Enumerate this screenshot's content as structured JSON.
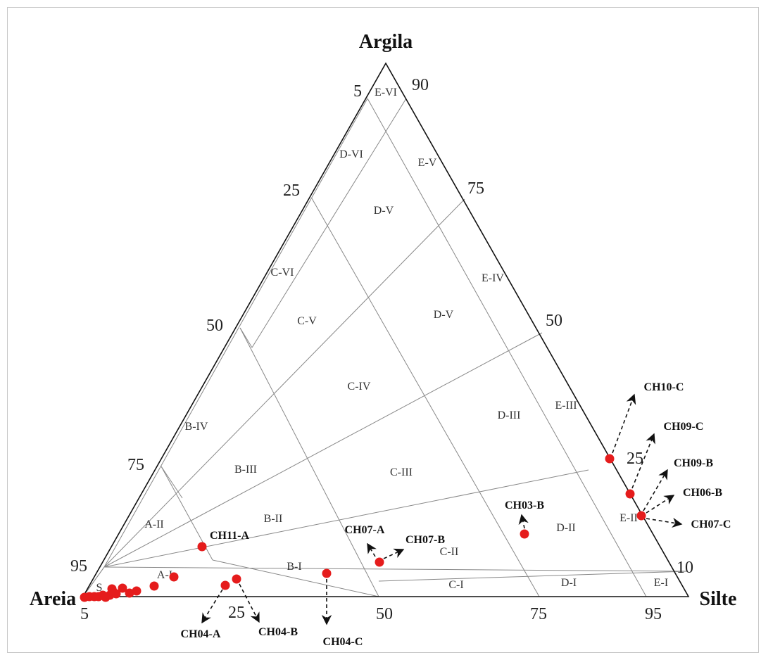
{
  "chart_data": {
    "type": "ternary-scatter",
    "title": "",
    "axes": {
      "top": "Argila",
      "left": "Areia",
      "right": "Silte"
    },
    "left_edge_ticks": [
      "5",
      "25",
      "50",
      "75",
      "95"
    ],
    "right_edge_ticks": [
      "90",
      "75",
      "50",
      "25",
      "10"
    ],
    "bottom_edge_ticks": [
      "5",
      "25",
      "50",
      "75",
      "95"
    ],
    "regions": [
      "E-VI",
      "D-VI",
      "E-V",
      "D-V",
      "D-V",
      "C-VI",
      "C-V",
      "E-IV",
      "B-IV",
      "C-IV",
      "D-III",
      "E-III",
      "B-III",
      "C-III",
      "A-II",
      "B-II",
      "D-II",
      "E-II",
      "C-II",
      "A-I",
      "B-I",
      "S",
      "C-I",
      "D-I",
      "E-I"
    ],
    "marker_color": "#e51c1c",
    "unlabeled_points": [
      {
        "silt": 0,
        "clay": 0
      },
      {
        "silt": 1,
        "clay": 0
      },
      {
        "silt": 2,
        "clay": 0
      },
      {
        "silt": 3,
        "clay": 0
      },
      {
        "silt": 3.5,
        "clay": 0.5
      },
      {
        "silt": 4,
        "clay": 0
      },
      {
        "silt": 4,
        "clay": 1
      },
      {
        "silt": 4.5,
        "clay": 2
      },
      {
        "silt": 5,
        "clay": 0.5
      },
      {
        "silt": 5,
        "clay": 2
      },
      {
        "silt": 6,
        "clay": 2
      },
      {
        "silt": 7,
        "clay": 1
      },
      {
        "silt": 8,
        "clay": 1.5
      },
      {
        "silt": 11,
        "clay": 2
      },
      {
        "silt": 15,
        "clay": 4
      },
      {
        "silt": 17,
        "clay": 6
      }
    ],
    "labeled_points": [
      {
        "label": "CH11-A",
        "silt": 18,
        "clay": 15
      },
      {
        "label": "CH04-A",
        "silt": 21,
        "clay": 1
      },
      {
        "label": "CH04-B",
        "silt": 22,
        "clay": 3
      },
      {
        "label": "CH04-C",
        "silt": 38,
        "clay": 7
      },
      {
        "label": "CH07-A",
        "silt": 46,
        "clay": 9
      },
      {
        "label": "CH07-B",
        "silt": 46,
        "clay": 9
      },
      {
        "label": "CH03-B",
        "silt": 68,
        "clay": 14
      },
      {
        "label": "CH10-C",
        "silt": 77,
        "clay": 23
      },
      {
        "label": "CH09-C",
        "silt": 79,
        "clay": 21
      },
      {
        "label": "CH09-B",
        "silt": 81,
        "clay": 19
      },
      {
        "label": "CH06-B",
        "silt": 81,
        "clay": 19
      },
      {
        "label": "CH07-C",
        "silt": 81,
        "clay": 19
      }
    ]
  }
}
